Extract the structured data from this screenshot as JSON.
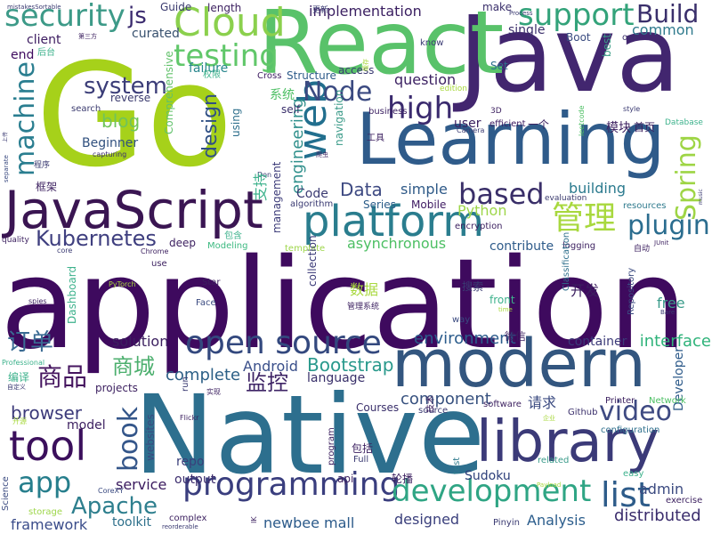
{
  "words": [
    {
      "text": "application",
      "color": "#3e0a5e"
    },
    {
      "text": "Native",
      "color": "#2d6f8e"
    },
    {
      "text": "Java",
      "color": "#42266f"
    },
    {
      "text": "Go",
      "color": "#a6d11a"
    },
    {
      "text": "React",
      "color": "#59c26a"
    },
    {
      "text": "Learning",
      "color": "#2f5b8a"
    },
    {
      "text": "JavaScript",
      "color": "#3a1552"
    },
    {
      "text": "modern",
      "color": "#33567f"
    },
    {
      "text": "library",
      "color": "#3b3a78"
    },
    {
      "text": "platform",
      "color": "#2a7d8e"
    },
    {
      "text": "Cloud",
      "color": "#8bd04d"
    },
    {
      "text": "open source",
      "color": "#33487e"
    },
    {
      "text": "security",
      "color": "#3d9a88"
    },
    {
      "text": "support",
      "color": "#33a37a"
    },
    {
      "text": "web",
      "color": "#226f8e"
    },
    {
      "text": "tool",
      "color": "#3b0f5c"
    },
    {
      "text": "testing",
      "color": "#61c76a"
    },
    {
      "text": "high",
      "color": "#3a2a6e"
    },
    {
      "text": "Node",
      "color": "#3b4a81"
    },
    {
      "text": "programming",
      "color": "#3a3e7e"
    },
    {
      "text": "development",
      "color": "#2fa584"
    },
    {
      "text": "video",
      "color": "#3e4a82"
    },
    {
      "text": "Spring",
      "color": "#9ed545"
    },
    {
      "text": "Kubernetes",
      "color": "#3f3f7f"
    },
    {
      "text": "machine",
      "color": "#2a7e90"
    },
    {
      "text": "system",
      "color": "#3b3d78"
    },
    {
      "text": "based",
      "color": "#3a2f69"
    },
    {
      "text": "app",
      "color": "#267e8c"
    },
    {
      "text": "plugin",
      "color": "#2b6d8f"
    },
    {
      "text": "list",
      "color": "#2e5c8a"
    },
    {
      "text": "book",
      "color": "#34568a"
    },
    {
      "text": "Apache",
      "color": "#2e7f8e"
    },
    {
      "text": "管理",
      "color": "#a8d83e"
    },
    {
      "text": "Build",
      "color": "#3a2f6b"
    },
    {
      "text": "design",
      "color": "#2f4f84"
    },
    {
      "text": "engineering",
      "color": "#30908c"
    },
    {
      "text": "商城",
      "color": "#4caf6e"
    },
    {
      "text": "监控",
      "color": "#3e2466"
    },
    {
      "text": "商品",
      "color": "#45155f"
    },
    {
      "text": "订单",
      "color": "#3a6b93"
    },
    {
      "text": "js",
      "color": "#3a2a6e"
    },
    {
      "text": "blog",
      "color": "#70c45a"
    },
    {
      "text": "Data",
      "color": "#3e4a82"
    },
    {
      "text": "Bootstrap",
      "color": "#29998c"
    },
    {
      "text": "Android",
      "color": "#3a4f8a"
    },
    {
      "text": "browser",
      "color": "#3c3a7a"
    },
    {
      "text": "environment",
      "color": "#2b5c8c"
    },
    {
      "text": "asynchronous",
      "color": "#4cbf63"
    },
    {
      "text": "interface",
      "color": "#2fb37a"
    },
    {
      "text": "container",
      "color": "#3b3a78"
    },
    {
      "text": "component",
      "color": "#37517f"
    },
    {
      "text": "complete",
      "color": "#2c5f86"
    },
    {
      "text": "solution",
      "color": "#3b1f5f"
    },
    {
      "text": "distributed",
      "color": "#3a2c6c"
    },
    {
      "text": "admin",
      "color": "#3b4a80"
    },
    {
      "text": "toolkit",
      "color": "#2c6f8a"
    },
    {
      "text": "newbee mall",
      "color": "#2b5a8a"
    },
    {
      "text": "designed",
      "color": "#3a3f7c"
    },
    {
      "text": "Analysis",
      "color": "#2b5d8c"
    },
    {
      "text": "framework",
      "color": "#3a4c8a"
    },
    {
      "text": "service",
      "color": "#3a1a5e"
    },
    {
      "text": "output",
      "color": "#3c2d6e"
    },
    {
      "text": "Sudoku",
      "color": "#2c3e7a"
    },
    {
      "text": "repo",
      "color": "#3a3f7a"
    },
    {
      "text": "language",
      "color": "#39306a"
    },
    {
      "text": "Beginner",
      "color": "#30507e"
    },
    {
      "text": "implementation",
      "color": "#3a1f61"
    },
    {
      "text": "question",
      "color": "#3a1f61"
    },
    {
      "text": "navigation",
      "color": "#3a9a88"
    },
    {
      "text": "Python",
      "color": "#9ed64a"
    },
    {
      "text": "simple",
      "color": "#2f5a88"
    },
    {
      "text": "building",
      "color": "#2b7a8e"
    },
    {
      "text": "Mobile",
      "color": "#3e1a62"
    },
    {
      "text": "client",
      "color": "#3b1a5f"
    },
    {
      "text": "end",
      "color": "#3e0a5e"
    },
    {
      "text": "curated",
      "color": "#37506e"
    },
    {
      "text": "single",
      "color": "#3b2f6b"
    },
    {
      "text": "make",
      "color": "#3a2f6b"
    },
    {
      "text": "common",
      "color": "#2f7a8d"
    },
    {
      "text": "Boot",
      "color": "#3a4b80"
    },
    {
      "text": "best",
      "color": "#3a9c86"
    },
    {
      "text": "one",
      "color": "#3a2f6b"
    },
    {
      "text": "Guide",
      "color": "#3a3a6e"
    },
    {
      "text": "length",
      "color": "#3b1f5f"
    },
    {
      "text": "failure",
      "color": "#29878e"
    },
    {
      "text": "Structure",
      "color": "#2e5b8a"
    },
    {
      "text": "Cross",
      "color": "#3b1a5f"
    },
    {
      "text": "access",
      "color": "#3a3a72"
    },
    {
      "text": "reverse",
      "color": "#3a3a6e"
    },
    {
      "text": "Comprehensive",
      "color": "#61c16a"
    },
    {
      "text": "search",
      "color": "#3a3a6e"
    },
    {
      "text": "capturing",
      "color": "#3c2d6e"
    },
    {
      "text": "using",
      "color": "#2e6f8c"
    },
    {
      "text": "self",
      "color": "#3a2f6b"
    },
    {
      "text": "user",
      "color": "#3b2060"
    },
    {
      "text": "efficient",
      "color": "#3b1a5f"
    },
    {
      "text": "business",
      "color": "#3a1f61"
    },
    {
      "text": "Series",
      "color": "#2a5b88"
    },
    {
      "text": "Code",
      "color": "#3a3a72"
    },
    {
      "text": "algorithm",
      "color": "#3a3a72"
    },
    {
      "text": "encryption",
      "color": "#3b1f5f"
    },
    {
      "text": "evaluation",
      "color": "#3a3a6e"
    },
    {
      "text": "resources",
      "color": "#2e7a8d"
    },
    {
      "text": "contribute",
      "color": "#2e5b8a"
    },
    {
      "text": "logging",
      "color": "#3b1f5f"
    },
    {
      "text": "template",
      "color": "#9ed64a"
    },
    {
      "text": "collection",
      "color": "#3b3a78"
    },
    {
      "text": "management",
      "color": "#3b3a78"
    },
    {
      "text": "deep",
      "color": "#3b1f5f"
    },
    {
      "text": "Modeling",
      "color": "#3cb980"
    },
    {
      "text": "Star",
      "color": "#3b1f5f"
    },
    {
      "text": "Face",
      "color": "#3a4a80"
    },
    {
      "text": "Dashboard",
      "color": "#3db28c"
    },
    {
      "text": "free",
      "color": "#3a9b8a"
    },
    {
      "text": "way",
      "color": "#3a4a80"
    },
    {
      "text": "front",
      "color": "#3db28c"
    },
    {
      "text": "Classification",
      "color": "#2e6f8c"
    },
    {
      "text": "Repository",
      "color": "#3a4a80"
    },
    {
      "text": "Developer",
      "color": "#2e5b8a"
    },
    {
      "text": "Network",
      "color": "#4cbf63"
    },
    {
      "text": "Printer",
      "color": "#3b1f5f"
    },
    {
      "text": "Github",
      "color": "#3a2f6b"
    },
    {
      "text": "configuration",
      "color": "#2e6f8c"
    },
    {
      "text": "easy",
      "color": "#3db28c"
    },
    {
      "text": "exercise",
      "color": "#3b1f5f"
    },
    {
      "text": "Courses",
      "color": "#3a2f6b"
    },
    {
      "text": "source",
      "color": "#3a3a72"
    },
    {
      "text": "software",
      "color": "#3b1f5f"
    },
    {
      "text": "program",
      "color": "#3b1f5f"
    },
    {
      "text": "api",
      "color": "#3b1f5f"
    },
    {
      "text": "Full",
      "color": "#3a3a72"
    },
    {
      "text": "test",
      "color": "#2e7a8d"
    },
    {
      "text": "related",
      "color": "#3a9b8a"
    },
    {
      "text": "Pinyin",
      "color": "#3a3a72"
    },
    {
      "text": "model",
      "color": "#3b1f5f"
    },
    {
      "text": "websites",
      "color": "#3a4a80"
    },
    {
      "text": "projects",
      "color": "#3b1f5f"
    },
    {
      "text": "run",
      "color": "#3a3a72"
    },
    {
      "text": "complex",
      "color": "#3b1f5f"
    },
    {
      "text": "storage",
      "color": "#9ed64a"
    },
    {
      "text": "Science",
      "color": "#3a4a80"
    },
    {
      "text": "Professional",
      "color": "#3db28c"
    },
    {
      "text": "quality",
      "color": "#3b1f5f"
    },
    {
      "text": "spies",
      "color": "#3b1f5f"
    },
    {
      "text": "core",
      "color": "#3a3a72"
    },
    {
      "text": "use",
      "color": "#3b1f5f"
    },
    {
      "text": "Flickr",
      "color": "#3b1f5f"
    },
    {
      "text": "PyTorch",
      "color": "#a8d83e"
    },
    {
      "text": "Chrome",
      "color": "#3b1f5f"
    },
    {
      "text": "CoreXY",
      "color": "#3a4a80"
    },
    {
      "text": "reorderable",
      "color": "#3a3a72"
    },
    {
      "text": "IK",
      "color": "#3b1f5f"
    },
    {
      "text": "Set",
      "color": "#2e6f8c"
    },
    {
      "text": "edition",
      "color": "#a8d83e"
    },
    {
      "text": "know",
      "color": "#3a3a72"
    },
    {
      "text": "3D",
      "color": "#3b1f5f"
    },
    {
      "text": "Camera",
      "color": "#3a3a72"
    },
    {
      "text": "leetcode",
      "color": "#4cbf63"
    },
    {
      "text": "style",
      "color": "#3a3a72"
    },
    {
      "text": "Database",
      "color": "#3db28c"
    },
    {
      "text": "music",
      "color": "#3a3a72"
    },
    {
      "text": "JUnit",
      "color": "#3b1f5f"
    },
    {
      "text": "Bare",
      "color": "#3a3a72"
    },
    {
      "text": "time",
      "color": "#a8d83e"
    },
    {
      "text": "Payload",
      "color": "#a8d83e"
    },
    {
      "text": "Process",
      "color": "#3a3a72"
    },
    {
      "text": "mistakesSortable",
      "color": "#3a3a72"
    },
    {
      "text": "separate",
      "color": "#3a4a80"
    },
    {
      "text": "Don",
      "color": "#3a3a72"
    },
    {
      "text": "系统",
      "color": "#4cbf63"
    },
    {
      "text": "框架",
      "color": "#3b1f5f"
    },
    {
      "text": "支持",
      "color": "#3db28c"
    },
    {
      "text": "数据",
      "color": "#a8d83e"
    },
    {
      "text": "开发",
      "color": "#3b1f5f"
    },
    {
      "text": "搜索",
      "color": "#3a3a72"
    },
    {
      "text": "模块",
      "color": "#3b1f5f"
    },
    {
      "text": "首页",
      "color": "#3b1f5f"
    },
    {
      "text": "请求",
      "color": "#3a4a80"
    },
    {
      "text": "编译",
      "color": "#3db28c"
    },
    {
      "text": "包括",
      "color": "#3b1f5f"
    },
    {
      "text": "轮播",
      "color": "#3b1f5f"
    },
    {
      "text": "包含",
      "color": "#3db28c"
    },
    {
      "text": "微信",
      "color": "#3b1f5f"
    },
    {
      "text": "后台",
      "color": "#3db28c"
    },
    {
      "text": "工具",
      "color": "#3b1f5f"
    },
    {
      "text": "一个",
      "color": "#3b1f5f"
    },
    {
      "text": "更新",
      "color": "#3a3a72"
    },
    {
      "text": "程序",
      "color": "#3a3a72"
    },
    {
      "text": "权限",
      "color": "#3db28c"
    },
    {
      "text": "第三方",
      "color": "#3b1f5f"
    },
    {
      "text": "爬虫",
      "color": "#3b1f5f"
    },
    {
      "text": "管理系统",
      "color": "#3b1f5f"
    },
    {
      "text": "自动",
      "color": "#3b1f5f"
    },
    {
      "text": "实现",
      "color": "#3b1f5f"
    },
    {
      "text": "技术",
      "color": "#3b1f5f"
    },
    {
      "text": "企业",
      "color": "#a8d83e"
    },
    {
      "text": "开源",
      "color": "#a8d83e"
    },
    {
      "text": "自定义",
      "color": "#3a3a72"
    },
    {
      "text": "上传",
      "color": "#3a3a72"
    },
    {
      "text": "缓存",
      "color": "#a8d83e"
    }
  ]
}
